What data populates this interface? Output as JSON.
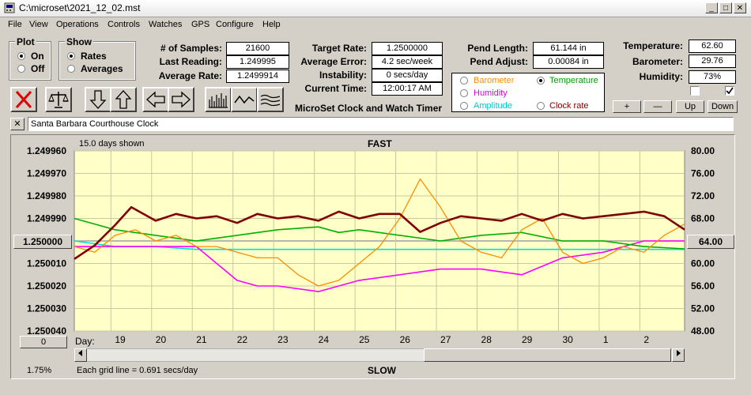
{
  "window": {
    "title": "C:\\microset\\2021_12_02.mst"
  },
  "menu": [
    "File",
    "View",
    "Operations",
    "Controls",
    "Watches",
    "GPS",
    "Configure",
    "Help"
  ],
  "plot_group": {
    "title": "Plot",
    "options": [
      "On",
      "Off"
    ],
    "selected": "On"
  },
  "show_group": {
    "title": "Show",
    "options": [
      "Rates",
      "Averages"
    ],
    "selected": "Rates"
  },
  "stats": {
    "samples_label": "# of Samples:",
    "samples": "21600",
    "last_reading_label": "Last Reading:",
    "last_reading": "1.249995",
    "avg_rate_label": "Average Rate:",
    "avg_rate": "1.2499914"
  },
  "rates": {
    "target_label": "Target Rate:",
    "target": "1.2500000",
    "avg_error_label": "Average Error:",
    "avg_error": "4.2 sec/week",
    "instability_label": "Instability:",
    "instability": "0 secs/day",
    "current_time_label": "Current Time:",
    "current_time": "12:00:17 AM"
  },
  "pendulum": {
    "length_label": "Pend Length:",
    "length": "61.144 in",
    "adjust_label": "Pend Adjust:",
    "adjust": "0.00084 in"
  },
  "environment": {
    "temperature_label": "Temperature:",
    "temperature": "62.60",
    "barometer_label": "Barometer:",
    "barometer": "29.76",
    "humidity_label": "Humidity:",
    "humidity": "73%"
  },
  "series_select": {
    "barometer": "Barometer",
    "temperature": "Temperature",
    "humidity": "Humidity",
    "amplitude": "Amplitude",
    "clock_rate": "Clock rate",
    "selected": "Temperature"
  },
  "adjust_buttons": {
    "plus": "+",
    "minus": "—",
    "up": "Up",
    "down": "Down"
  },
  "app_caption": "MicroSet Clock and Watch Timer",
  "close_x": "✕",
  "clock_name": "Santa Barbara Courthouse Clock",
  "colors": {
    "rate": "#800000",
    "barometer": "#ff8c00",
    "temperature": "#00b000",
    "humidity": "#ff00ff",
    "amplitude": "#00e0e0",
    "plot_bg": "#ffffc8"
  },
  "chart_data": {
    "type": "line",
    "title": "FAST",
    "bottom_label": "SLOW",
    "days_shown": "15.0 days shown",
    "grid_note": "Each grid line = 0.691 secs/day",
    "percent": "1.75%",
    "left_center_value": "1.250000",
    "right_center_value": "64.00",
    "bottom_left_button": "0",
    "day_prefix": "Day:",
    "left_ticks": [
      "1.249960",
      "1.249970",
      "1.249980",
      "1.249990",
      "1.250000",
      "1.250010",
      "1.250020",
      "1.250030",
      "1.250040"
    ],
    "right_ticks": [
      "80.00",
      "76.00",
      "72.00",
      "68.00",
      "64.00",
      "60.00",
      "56.00",
      "52.00",
      "48.00"
    ],
    "left_ylim": [
      1.24996,
      1.25004
    ],
    "right_ylim": [
      48,
      80
    ],
    "x_days": [
      "19",
      "20",
      "21",
      "22",
      "23",
      "24",
      "25",
      "26",
      "27",
      "28",
      "29",
      "30",
      "1",
      "2"
    ],
    "x_range": [
      0,
      15
    ],
    "series": [
      {
        "key": "rate",
        "axis": "left",
        "x": [
          0.0,
          0.5,
          1.0,
          1.4,
          2.0,
          2.5,
          3.0,
          3.5,
          4.0,
          4.5,
          5.0,
          5.5,
          6.0,
          6.5,
          7.0,
          7.5,
          8.0,
          8.5,
          9.0,
          9.5,
          10.0,
          10.5,
          11.0,
          11.5,
          12.0,
          12.5,
          13.0,
          13.5,
          14.0,
          14.5,
          15.0
        ],
        "y": [
          1.250008,
          1.250002,
          1.249993,
          1.249985,
          1.249991,
          1.249988,
          1.24999,
          1.249989,
          1.249992,
          1.249988,
          1.24999,
          1.249989,
          1.249991,
          1.249987,
          1.24999,
          1.249988,
          1.249988,
          1.249996,
          1.249992,
          1.249989,
          1.24999,
          1.249991,
          1.249988,
          1.249991,
          1.249988,
          1.24999,
          1.249989,
          1.249988,
          1.249987,
          1.249989,
          1.249995
        ]
      },
      {
        "key": "barometer",
        "axis": "right",
        "x": [
          0.0,
          0.5,
          1.0,
          1.5,
          2.0,
          2.5,
          3.0,
          3.5,
          4.0,
          4.5,
          5.0,
          5.5,
          6.0,
          6.5,
          7.0,
          7.5,
          8.0,
          8.5,
          9.0,
          9.5,
          10.0,
          10.5,
          11.0,
          11.5,
          12.0,
          12.5,
          13.0,
          13.5,
          14.0,
          14.5,
          15.0
        ],
        "y": [
          63,
          62,
          65,
          66,
          64,
          65,
          63,
          63,
          62,
          61,
          61,
          58,
          56,
          57,
          60,
          63,
          68,
          75,
          70,
          64,
          62,
          61,
          66,
          68,
          62,
          60,
          61,
          63,
          62,
          65,
          67
        ]
      },
      {
        "key": "temperature",
        "axis": "right",
        "x": [
          0.0,
          1.0,
          2.0,
          3.0,
          4.0,
          5.0,
          6.0,
          6.5,
          7.0,
          8.0,
          9.0,
          9.5,
          10.0,
          11.0,
          12.0,
          13.0,
          14.0,
          15.0
        ],
        "y": [
          68,
          66,
          65,
          64,
          65,
          66,
          66.5,
          65.5,
          66,
          65,
          64,
          64.5,
          65,
          65.5,
          64,
          64,
          63,
          62.6
        ]
      },
      {
        "key": "humidity",
        "axis": "right",
        "x": [
          0.0,
          1.0,
          2.0,
          3.0,
          3.5,
          4.0,
          4.5,
          5.0,
          6.0,
          7.0,
          8.0,
          9.0,
          10.0,
          11.0,
          12.0,
          13.0,
          14.0,
          15.0
        ],
        "y": [
          63,
          63,
          63,
          63,
          60,
          57,
          56,
          56,
          55,
          57,
          58,
          59,
          59,
          58,
          61,
          62,
          64,
          64
        ]
      },
      {
        "key": "amplitude",
        "axis": "right",
        "x": [
          0.0,
          1.0,
          2.0,
          3.0,
          4.0,
          5.0,
          6.0,
          7.0,
          8.0,
          9.0,
          10.0,
          11.0,
          12.0,
          13.0,
          14.0,
          15.0
        ],
        "y": [
          64,
          63,
          63,
          62.5,
          62.5,
          62.5,
          62.5,
          62.5,
          62.5,
          62.5,
          62.5,
          62.5,
          62.5,
          62.5,
          62.5,
          62.5
        ]
      }
    ]
  }
}
